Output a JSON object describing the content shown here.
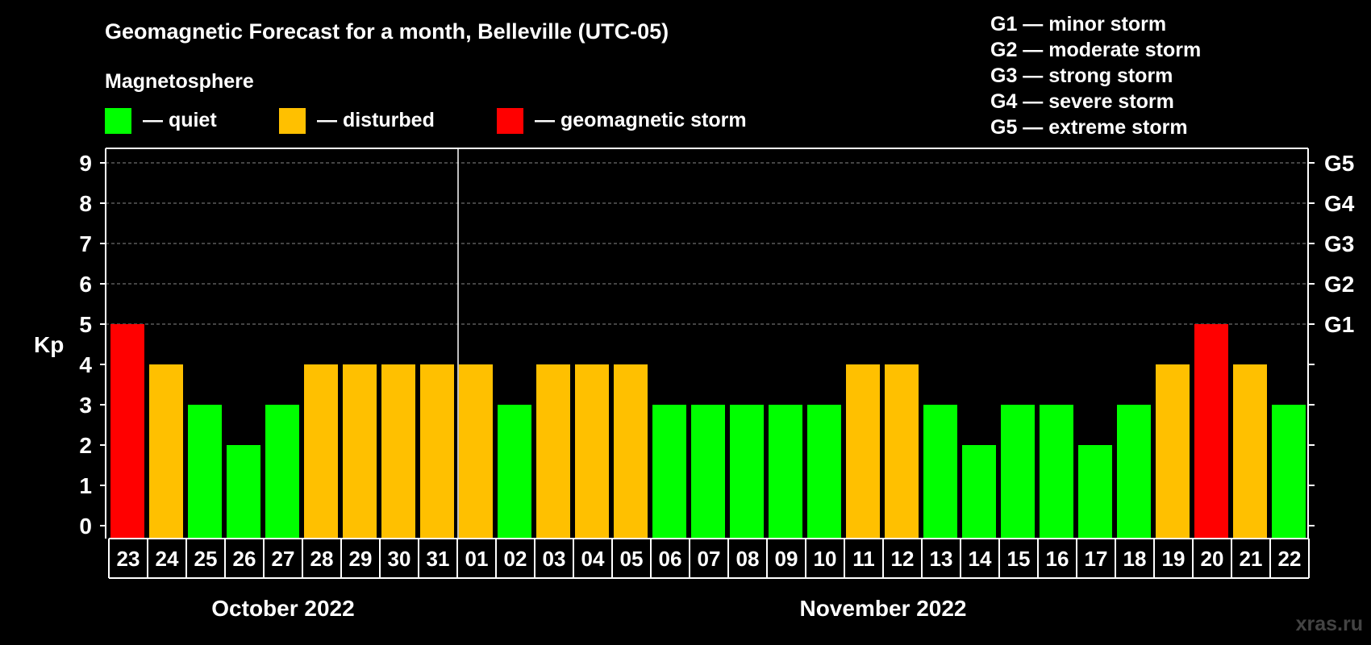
{
  "chart_data": {
    "type": "bar",
    "title": "Geomagnetic Forecast for a month, Belleville (UTC-05)",
    "subtitle": "Magnetosphere",
    "ylabel": "Kp",
    "ylim": [
      0,
      9
    ],
    "y_ticks": [
      "0",
      "1",
      "2",
      "3",
      "4",
      "5",
      "6",
      "7",
      "8",
      "9"
    ],
    "grid_levels": [
      5,
      6,
      7,
      8,
      9
    ],
    "right_axis_labels": [
      {
        "level": 5,
        "label": "G1"
      },
      {
        "level": 6,
        "label": "G2"
      },
      {
        "level": 7,
        "label": "G3"
      },
      {
        "level": 8,
        "label": "G4"
      },
      {
        "level": 9,
        "label": "G5"
      }
    ],
    "legend": [
      {
        "label": "— quiet",
        "color": "#00ff00"
      },
      {
        "label": "— disturbed",
        "color": "#ffc000"
      },
      {
        "label": "— geomagnetic storm",
        "color": "#ff0000"
      }
    ],
    "storm_scale": [
      "G1 — minor storm",
      "G2 — moderate storm",
      "G3 — strong storm",
      "G4 — severe storm",
      "G5 — extreme storm"
    ],
    "categories": [
      "23",
      "24",
      "25",
      "26",
      "27",
      "28",
      "29",
      "30",
      "31",
      "01",
      "02",
      "03",
      "04",
      "05",
      "06",
      "07",
      "08",
      "09",
      "10",
      "11",
      "12",
      "13",
      "14",
      "15",
      "16",
      "17",
      "18",
      "19",
      "20",
      "21",
      "22"
    ],
    "values": [
      5,
      4,
      3,
      2,
      3,
      4,
      4,
      4,
      4,
      4,
      3,
      4,
      4,
      4,
      3,
      3,
      3,
      3,
      3,
      4,
      4,
      3,
      2,
      3,
      3,
      2,
      3,
      4,
      5,
      4,
      3
    ],
    "months": [
      {
        "label": "October 2022",
        "start_index": 0,
        "end_index": 8
      },
      {
        "label": "November 2022",
        "start_index": 9,
        "end_index": 30
      }
    ],
    "color_rules": {
      "quiet_max": 3,
      "disturbed_max": 4,
      "quiet": "#00ff00",
      "disturbed": "#ffc000",
      "storm": "#ff0000"
    }
  },
  "watermark": "xras.ru"
}
